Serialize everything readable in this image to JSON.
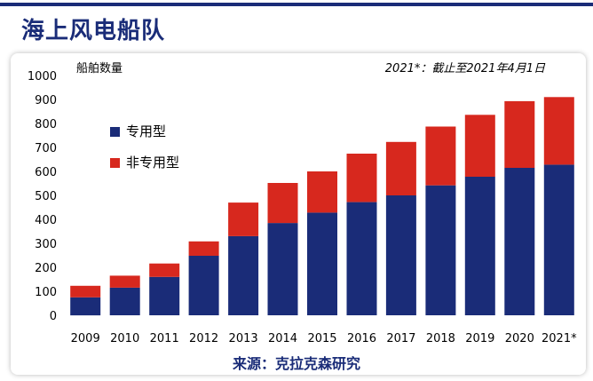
{
  "title": "海上风电船队",
  "source_text": "来源：克拉克森研究",
  "colors": {
    "dedicated": "#1a2c78",
    "non_dedicated": "#d7281e",
    "title": "#1a2c78",
    "axis_text": "#000000"
  },
  "chart_data": {
    "type": "bar",
    "stacked": true,
    "title": "",
    "ylabel": "船舶数量",
    "xlabel": "",
    "note": "2021*：截止至2021年4月1日",
    "ylim": [
      0,
      1000
    ],
    "yticks": [
      0,
      100,
      200,
      300,
      400,
      500,
      600,
      700,
      800,
      900,
      1000
    ],
    "categories": [
      "2009",
      "2010",
      "2011",
      "2012",
      "2013",
      "2014",
      "2015",
      "2016",
      "2017",
      "2018",
      "2019",
      "2020",
      "2021*"
    ],
    "series": [
      {
        "name": "专用型",
        "values": [
          75,
          115,
          160,
          248,
          330,
          385,
          428,
          472,
          500,
          542,
          578,
          615,
          628
        ]
      },
      {
        "name": "非专用型",
        "values": [
          48,
          50,
          56,
          60,
          140,
          167,
          172,
          202,
          223,
          245,
          258,
          278,
          282
        ]
      }
    ],
    "legend_position": "top-left"
  }
}
